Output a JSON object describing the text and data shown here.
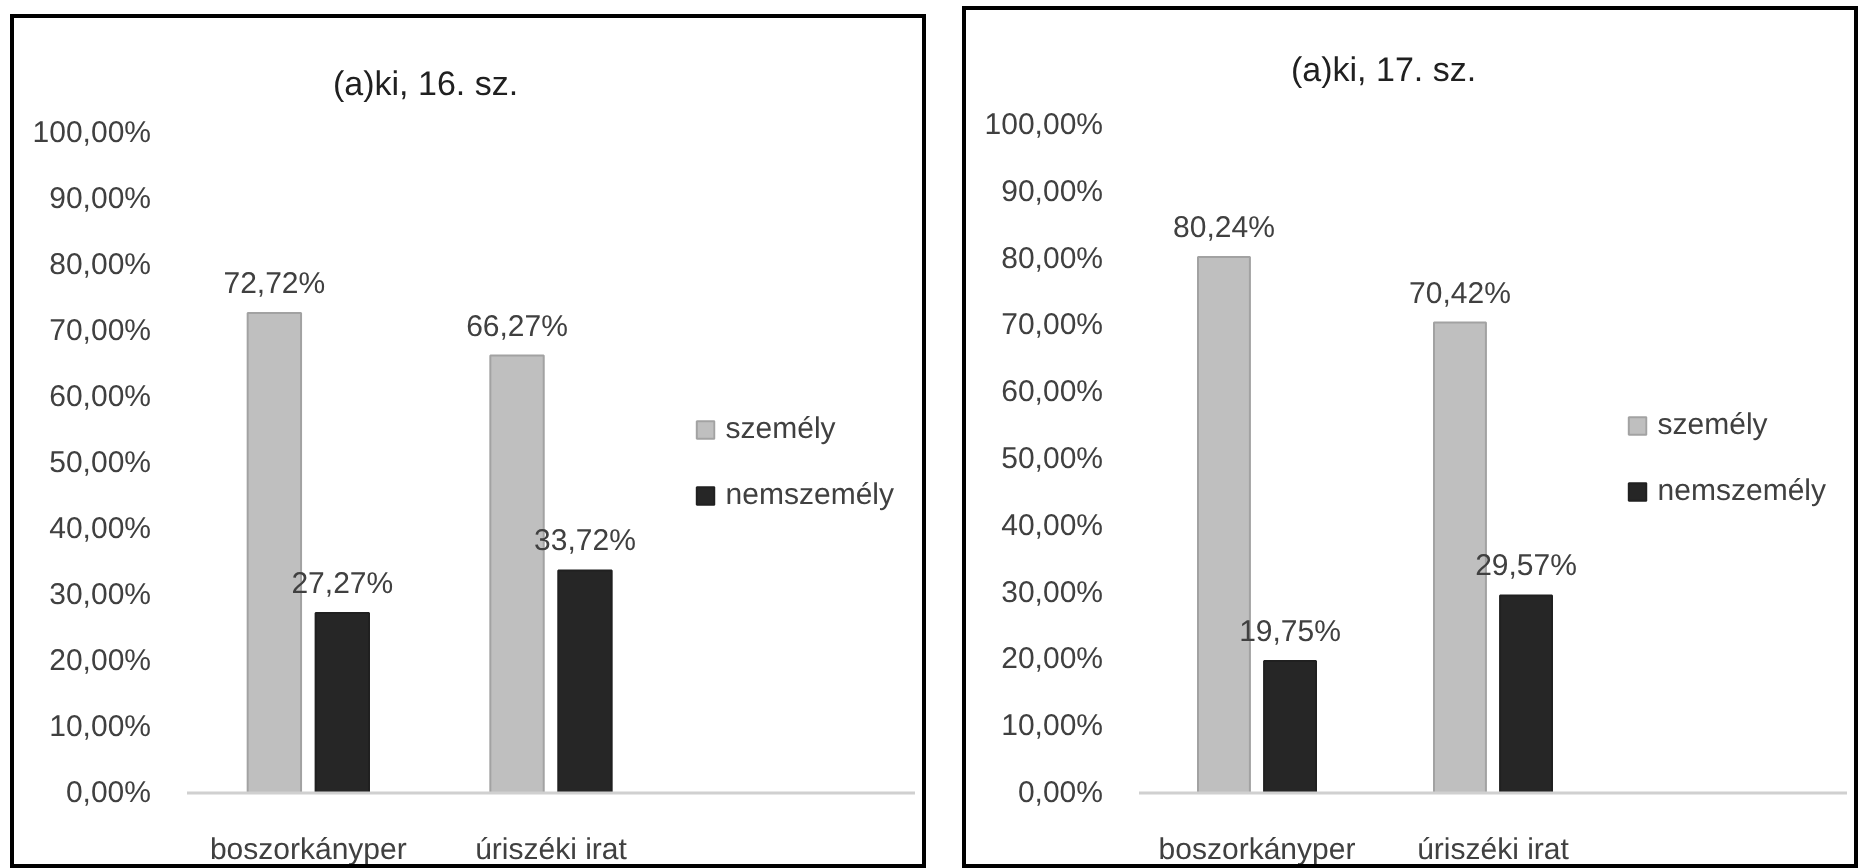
{
  "chart_data": [
    {
      "type": "bar",
      "title": "(a)ki, 16. sz.",
      "categories": [
        "boszorkányper",
        "úriszéki irat",
        null
      ],
      "series": [
        {
          "name": "személy",
          "color": "#bfbfbf",
          "values": [
            72.72,
            66.27,
            null
          ],
          "value_labels": [
            "72,72%",
            "66,27%",
            null
          ]
        },
        {
          "name": "nemszemély",
          "color": "#262626",
          "values": [
            27.27,
            33.72,
            null
          ],
          "value_labels": [
            "27,27%",
            "33,72%",
            null
          ]
        }
      ],
      "ylim": [
        0,
        100
      ],
      "yticks": [
        {
          "value": 0,
          "label": "0,00%"
        },
        {
          "value": 10,
          "label": "10,00%"
        },
        {
          "value": 20,
          "label": "20,00%"
        },
        {
          "value": 30,
          "label": "30,00%"
        },
        {
          "value": 40,
          "label": "40,00%"
        },
        {
          "value": 50,
          "label": "50,00%"
        },
        {
          "value": 60,
          "label": "60,00%"
        },
        {
          "value": 70,
          "label": "70,00%"
        },
        {
          "value": 80,
          "label": "80,00%"
        },
        {
          "value": 90,
          "label": "90,00%"
        },
        {
          "value": 100,
          "label": "100,00%"
        }
      ],
      "legend": "right"
    },
    {
      "type": "bar",
      "title": "(a)ki, 17. sz.",
      "categories": [
        "boszorkányper",
        "úriszéki irat",
        null
      ],
      "series": [
        {
          "name": "személy",
          "color": "#bfbfbf",
          "values": [
            80.24,
            70.42,
            null
          ],
          "value_labels": [
            "80,24%",
            "70,42%",
            null
          ]
        },
        {
          "name": "nemszemély",
          "color": "#262626",
          "values": [
            19.75,
            29.57,
            null
          ],
          "value_labels": [
            "19,75%",
            "29,57%",
            null
          ]
        }
      ],
      "ylim": [
        0,
        100
      ],
      "yticks": [
        {
          "value": 0,
          "label": "0,00%"
        },
        {
          "value": 10,
          "label": "10,00%"
        },
        {
          "value": 20,
          "label": "20,00%"
        },
        {
          "value": 30,
          "label": "30,00%"
        },
        {
          "value": 40,
          "label": "40,00%"
        },
        {
          "value": 50,
          "label": "50,00%"
        },
        {
          "value": 60,
          "label": "60,00%"
        },
        {
          "value": 70,
          "label": "70,00%"
        },
        {
          "value": 80,
          "label": "80,00%"
        },
        {
          "value": 90,
          "label": "90,00%"
        },
        {
          "value": 100,
          "label": "100,00%"
        }
      ],
      "legend": "right"
    }
  ]
}
